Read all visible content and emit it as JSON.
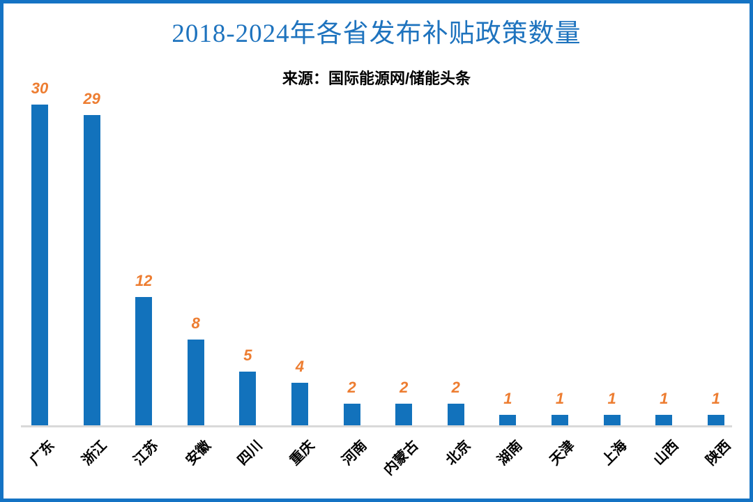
{
  "header": {
    "title": "2018-2024年各省发布补贴政策数量",
    "subtitle": "来源：国际能源网/储能头条"
  },
  "colors": {
    "frame_border": "#1473C4",
    "title_text": "#1E73BE",
    "bar_fill": "#1272BC",
    "value_label": "#ED7D31",
    "axis_line": "#D9D9D9",
    "category_label": "#000000"
  },
  "chart_data": {
    "type": "bar",
    "title": "2018-2024年各省发布补贴政策数量",
    "subtitle": "来源：国际能源网/储能头条",
    "categories": [
      "广东",
      "浙江",
      "江苏",
      "安徽",
      "四川",
      "重庆",
      "河南",
      "内蒙古",
      "北京",
      "湖南",
      "天津",
      "上海",
      "山西",
      "陕西"
    ],
    "values": [
      30,
      29,
      12,
      8,
      5,
      4,
      2,
      2,
      2,
      1,
      1,
      1,
      1,
      1
    ],
    "xlabel": "",
    "ylabel": "",
    "ylim": [
      0,
      30
    ],
    "grid": false,
    "legend": false,
    "y_axis_visible": false,
    "value_labels_shown": true,
    "category_label_rotation_deg": -45
  }
}
